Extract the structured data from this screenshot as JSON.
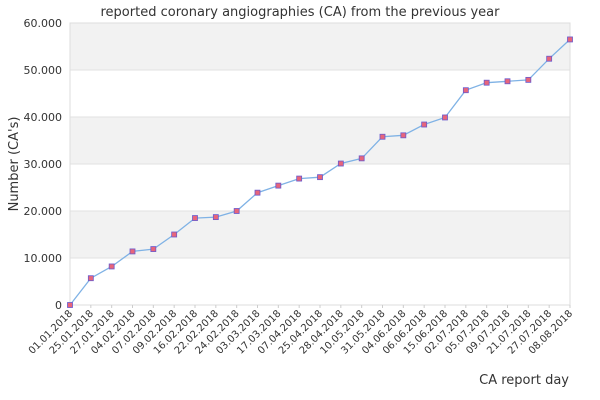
{
  "chart_data": {
    "type": "line",
    "title": "reported coronary angiographies (CA) from the previous year",
    "xlabel": "CA report day",
    "ylabel": "Number (CA's)",
    "ylim": [
      0,
      60000
    ],
    "yticks": [
      0,
      10000,
      20000,
      30000,
      40000,
      50000,
      60000
    ],
    "ytick_labels": [
      "0",
      "10.000",
      "20.000",
      "30.000",
      "40.000",
      "50.000",
      "60.000"
    ],
    "grid": "alternating horizontal bands",
    "legend": "none",
    "colors": {
      "line": "#7fb2e5",
      "marker_fill": "#e8657a",
      "marker_stroke": "#6a5acd",
      "band": "#f2f2f2"
    },
    "categories": [
      "01.01.2018",
      "25.01.2018",
      "27.01.2018",
      "04.02.2018",
      "07.02.2018",
      "09.02.2018",
      "16.02.2018",
      "22.02.2018",
      "24.02.2018",
      "03.03.2018",
      "17.03.2018",
      "07.04.2018",
      "25.04.2018",
      "28.04.2018",
      "10.05.2018",
      "31.05.2018",
      "04.06.2018",
      "06.06.2018",
      "15.06.2018",
      "02.07.2018",
      "05.07.2018",
      "09.07.2018",
      "21.07.2018",
      "27.07.2018",
      "08.08.2018"
    ],
    "series": [
      {
        "values": [
          0,
          5700,
          8200,
          11400,
          11900,
          15000,
          18500,
          18700,
          20000,
          23900,
          25400,
          26900,
          27200,
          30100,
          31200,
          35800,
          36100,
          38400,
          39900,
          45700,
          47300,
          47600,
          47900,
          52400,
          56500
        ]
      }
    ]
  }
}
